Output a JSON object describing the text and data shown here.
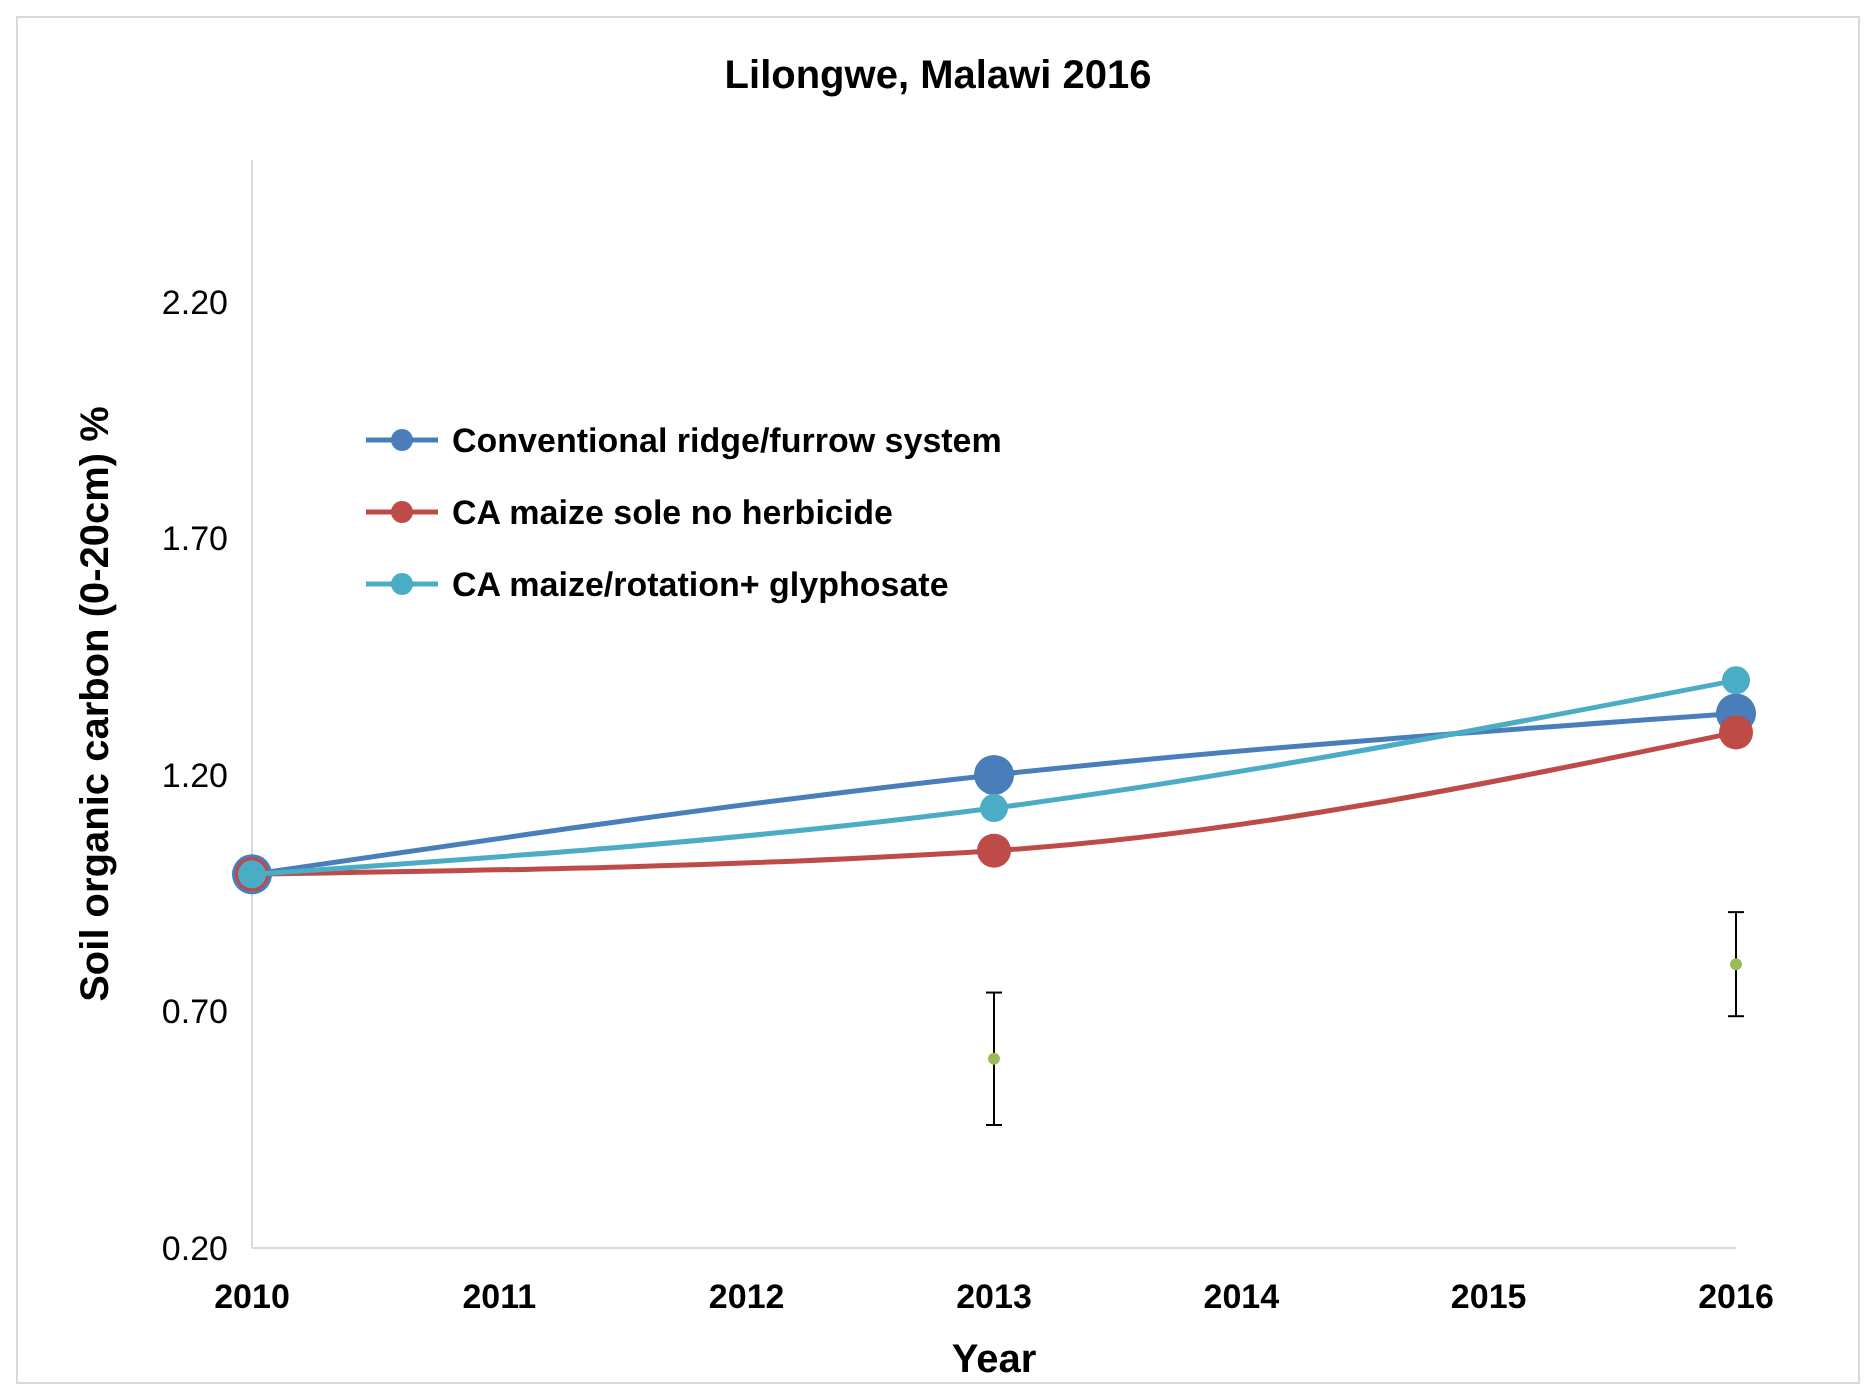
{
  "chart_data": {
    "type": "line",
    "title": "Lilongwe, Malawi 2016",
    "xlabel": "Year",
    "ylabel": "Soil organic carbon (0-20cm) %",
    "x": [
      2010,
      2013,
      2016
    ],
    "xlim": [
      2010,
      2016
    ],
    "xticks": [
      2010,
      2011,
      2012,
      2013,
      2014,
      2015,
      2016
    ],
    "ylim": [
      0.2,
      2.5
    ],
    "yticks": [
      {
        "value": 0.2,
        "label": "0.20"
      },
      {
        "value": 0.7,
        "label": "0.70"
      },
      {
        "value": 1.2,
        "label": "1.20"
      },
      {
        "value": 1.7,
        "label": "1.70"
      },
      {
        "value": 2.2,
        "label": "2.20"
      }
    ],
    "series": [
      {
        "name": "Conventional ridge/furrow system",
        "color": "#4a7ebb",
        "values": [
          0.99,
          1.2,
          1.33
        ]
      },
      {
        "name": "CA maize sole no herbicide",
        "color": "#be4b48",
        "values": [
          0.99,
          1.04,
          1.29
        ]
      },
      {
        "name": "CA maize/rotation+ glyphosate",
        "color": "#4bacc6",
        "values": [
          0.99,
          1.13,
          1.4
        ]
      },
      {
        "type": "scatter",
        "color": "#9bbb59",
        "x": [
          2013,
          2016
        ],
        "values": [
          0.6,
          0.8
        ],
        "errors": [
          [
            0.46,
            0.74
          ],
          [
            0.69,
            0.91
          ]
        ]
      }
    ],
    "grid": false,
    "legend": "top left",
    "marker": "circle",
    "line_style": "solid"
  }
}
